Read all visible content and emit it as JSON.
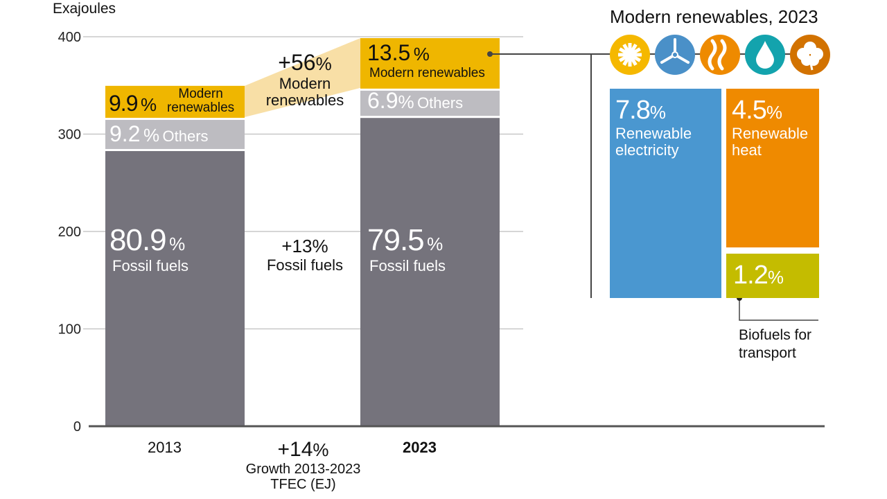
{
  "chart_data": {
    "type": "bar",
    "stacked": true,
    "ylabel": "Exajoules",
    "ylim": [
      0,
      400
    ],
    "yticks": [
      0,
      100,
      200,
      300,
      400
    ],
    "grid": true,
    "categories": [
      "2013",
      "2023"
    ],
    "series": [
      {
        "name": "Fossil fuels",
        "values": [
          284,
          318
        ],
        "shares": [
          "80.9",
          "79.5"
        ],
        "color": "#75737c"
      },
      {
        "name": "Others",
        "values": [
          32,
          28
        ],
        "shares": [
          "9.2",
          "6.9"
        ],
        "color": "#bdbcc1"
      },
      {
        "name": "Modern renewables",
        "values": [
          35,
          54
        ],
        "shares": [
          "9.9",
          "13.5"
        ],
        "color": "#efb600"
      }
    ],
    "growth": {
      "renewables": {
        "value": "+56",
        "label1": "Modern",
        "label2": "renewables"
      },
      "fossil": {
        "value": "+13",
        "label": "Fossil fuels"
      },
      "total": {
        "value": "+14",
        "label1": "Growth 2013-2023",
        "label2": "TFEC (EJ)"
      }
    }
  },
  "pct": "%",
  "labels": {
    "others": "Others",
    "mr1": "Modern",
    "mr2": "renewables",
    "mr": "Modern renewables",
    "fossil": "Fossil fuels"
  },
  "breakdown": {
    "title": "Modern renewables, 2023",
    "icons": [
      {
        "name": "sun-icon",
        "color": "#f5b800"
      },
      {
        "name": "wind-turbine-icon",
        "color": "#4a90c8"
      },
      {
        "name": "heat-waves-icon",
        "color": "#ee8a00"
      },
      {
        "name": "water-drop-icon",
        "color": "#13a3ad"
      },
      {
        "name": "biomass-leaf-icon",
        "color": "#d27200"
      }
    ],
    "electricity": {
      "value": "7.8",
      "l1": "Renewable",
      "l2": "electricity",
      "color": "#4a97d0"
    },
    "heat": {
      "value": "4.5",
      "l1": "Renewable",
      "l2": "heat",
      "color": "#ef8a00"
    },
    "biofuels": {
      "value": "1.2",
      "l1": "Biofuels for",
      "l2": "transport",
      "color": "#c4bc00"
    }
  }
}
